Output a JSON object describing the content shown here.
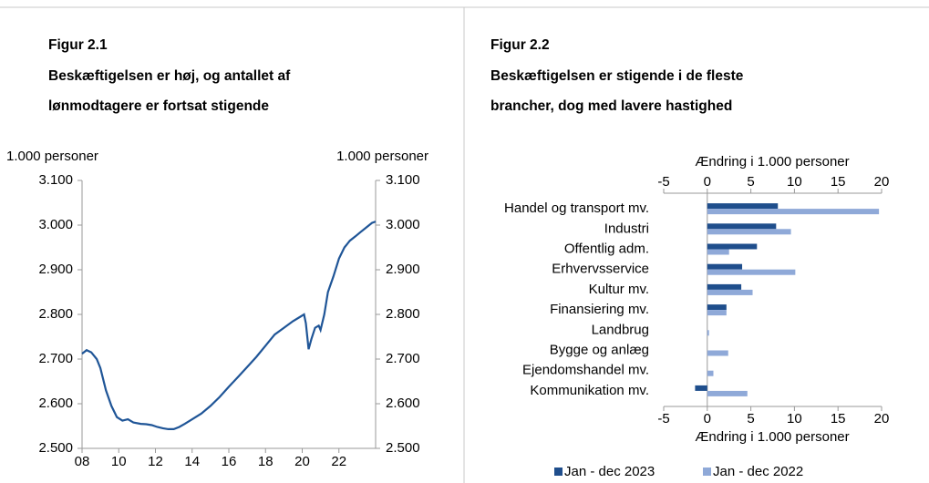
{
  "chart_data": [
    {
      "type": "line",
      "figure": "Figur 2.1",
      "title": [
        "Beskæftigelsen er høj, og antallet af",
        "lønmodtagere er fortsat stigende"
      ],
      "y_label": "1.000 personer",
      "y2_label": "1.000 personer",
      "color": "#1f5597",
      "x": [
        2008.0,
        2008.25,
        2008.5,
        2008.8,
        2009.0,
        2009.3,
        2009.6,
        2009.9,
        2010.2,
        2010.5,
        2010.8,
        2011.2,
        2011.5,
        2011.8,
        2012.1,
        2012.4,
        2012.7,
        2013.0,
        2013.3,
        2013.6,
        2014.0,
        2014.5,
        2015.0,
        2015.5,
        2016.0,
        2016.5,
        2017.0,
        2017.5,
        2018.0,
        2018.5,
        2019.0,
        2019.5,
        2019.9,
        2020.1,
        2020.2,
        2020.35,
        2020.5,
        2020.7,
        2020.9,
        2021.0,
        2021.2,
        2021.4,
        2021.7,
        2022.0,
        2022.3,
        2022.6,
        2022.9,
        2023.2,
        2023.5,
        2023.8,
        2024.0
      ],
      "values": [
        2712,
        2720,
        2715,
        2700,
        2680,
        2630,
        2595,
        2570,
        2562,
        2565,
        2558,
        2555,
        2554,
        2552,
        2548,
        2545,
        2543,
        2543,
        2548,
        2555,
        2565,
        2578,
        2595,
        2615,
        2638,
        2660,
        2682,
        2705,
        2730,
        2755,
        2770,
        2785,
        2795,
        2800,
        2780,
        2722,
        2745,
        2770,
        2775,
        2765,
        2800,
        2850,
        2885,
        2925,
        2950,
        2965,
        2975,
        2985,
        2995,
        3005,
        3008
      ],
      "xlim": [
        2008,
        2024
      ],
      "xticks": [
        {
          "value": 2008,
          "label": "08"
        },
        {
          "value": 2010,
          "label": "10"
        },
        {
          "value": 2012,
          "label": "12"
        },
        {
          "value": 2014,
          "label": "14"
        },
        {
          "value": 2016,
          "label": "16"
        },
        {
          "value": 2018,
          "label": "18"
        },
        {
          "value": 2020,
          "label": "20"
        },
        {
          "value": 2022,
          "label": "22"
        }
      ],
      "ylim": [
        2500,
        3100
      ],
      "yticks": [
        {
          "value": 2500,
          "label": "2.500"
        },
        {
          "value": 2600,
          "label": "2.600"
        },
        {
          "value": 2700,
          "label": "2.700"
        },
        {
          "value": 2800,
          "label": "2.800"
        },
        {
          "value": 2900,
          "label": "2.900"
        },
        {
          "value": 3000,
          "label": "3.000"
        },
        {
          "value": 3100,
          "label": "3.100"
        }
      ],
      "y2lim": [
        2500,
        3100
      ],
      "y2ticks": [
        {
          "value": 2500,
          "label": "2.500"
        },
        {
          "value": 2600,
          "label": "2.600"
        },
        {
          "value": 2700,
          "label": "2.700"
        },
        {
          "value": 2800,
          "label": "2.800"
        },
        {
          "value": 2900,
          "label": "2.900"
        },
        {
          "value": 3000,
          "label": "3.000"
        },
        {
          "value": 3100,
          "label": "3.100"
        }
      ]
    },
    {
      "type": "hbar",
      "figure": "Figur 2.2",
      "title": [
        "Beskæftigelsen er stigende i de fleste",
        "brancher, dog med lavere hastighed"
      ],
      "x_label": "Ændring i 1.000 personer",
      "x2_label": "Ændring i 1.000 personer",
      "categories": [
        "Handel og transport mv.",
        "Industri",
        "Offentlig adm.",
        "Erhvervsservice",
        "Kultur mv.",
        "Finansiering mv.",
        "Landbrug",
        "Bygge og anlæg",
        "Ejendomshandel mv.",
        "Kommunikation mv."
      ],
      "series": [
        {
          "name": "Jan - dec 2023",
          "color": "#1f4e8c",
          "values": [
            8.1,
            7.9,
            5.7,
            4.0,
            3.9,
            2.2,
            0.0,
            0.0,
            0.0,
            -1.4
          ]
        },
        {
          "name": "Jan - dec 2022",
          "color": "#8fa9d8",
          "values": [
            19.7,
            9.6,
            2.5,
            10.1,
            5.2,
            2.2,
            0.2,
            2.4,
            0.7,
            4.6
          ]
        }
      ],
      "xlim": [
        -5,
        20
      ],
      "xticks": [
        -5,
        0,
        5,
        10,
        15,
        20
      ],
      "legend": "bottom"
    }
  ]
}
